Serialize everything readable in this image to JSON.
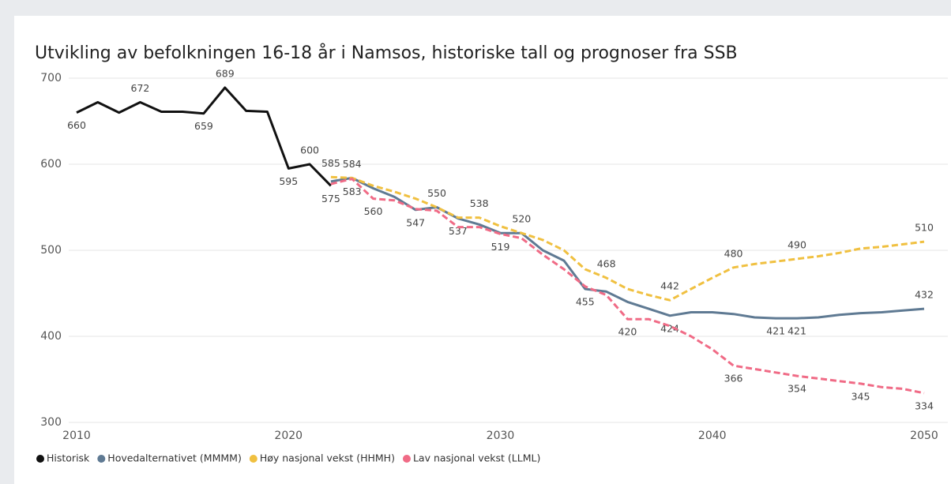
{
  "chart_data": {
    "type": "line",
    "title": "Utvikling av befolkningen 16-18 år i Namsos, historiske tall og prognoser fra SSB",
    "x": [
      2010,
      2011,
      2012,
      2013,
      2014,
      2015,
      2016,
      2017,
      2018,
      2019,
      2020,
      2021,
      2022,
      2023,
      2024,
      2025,
      2026,
      2027,
      2028,
      2029,
      2030,
      2031,
      2032,
      2033,
      2034,
      2035,
      2036,
      2037,
      2038,
      2039,
      2040,
      2041,
      2042,
      2043,
      2044,
      2045,
      2046,
      2047,
      2048,
      2049,
      2050
    ],
    "xlim": [
      2010,
      2050
    ],
    "xticks": [
      2010,
      2020,
      2030,
      2040,
      2050
    ],
    "ylim": [
      300,
      700
    ],
    "yticks": [
      300,
      400,
      500,
      600,
      700
    ],
    "grid": true,
    "legend": "bottom",
    "series": [
      {
        "name": "Historisk",
        "color": "#111111",
        "line_style": "solid",
        "values": [
          660,
          672,
          660,
          672,
          661,
          661,
          659,
          689,
          662,
          661,
          595,
          600,
          575,
          null,
          null,
          null,
          null,
          null,
          null,
          null,
          null,
          null,
          null,
          null,
          null,
          null,
          null,
          null,
          null,
          null,
          null,
          null,
          null,
          null,
          null,
          null,
          null,
          null,
          null,
          null,
          null
        ],
        "value_labels": [
          "660",
          null,
          null,
          "672",
          null,
          null,
          "659",
          "689",
          null,
          null,
          "595",
          "600",
          "575",
          null,
          null,
          null,
          null,
          null,
          null,
          null,
          null,
          null,
          null,
          null,
          null,
          null,
          null,
          null,
          null,
          null,
          null,
          null,
          null,
          null,
          null,
          null,
          null,
          null,
          null,
          null,
          null
        ]
      },
      {
        "name": "Hovedalternativet (MMMM)",
        "color": "#5f7a93",
        "line_style": "solid",
        "values": [
          null,
          null,
          null,
          null,
          null,
          null,
          null,
          null,
          null,
          null,
          null,
          null,
          580,
          584,
          572,
          562,
          547,
          550,
          537,
          530,
          520,
          520,
          500,
          488,
          455,
          452,
          440,
          432,
          424,
          428,
          428,
          426,
          422,
          421,
          421,
          422,
          425,
          427,
          428,
          430,
          432
        ],
        "value_labels": [
          null,
          null,
          null,
          null,
          null,
          null,
          null,
          null,
          null,
          null,
          null,
          null,
          null,
          null,
          null,
          null,
          "547",
          null,
          "537",
          null,
          null,
          null,
          null,
          null,
          "455",
          null,
          null,
          null,
          "424",
          null,
          null,
          null,
          null,
          "421",
          "421",
          null,
          null,
          null,
          null,
          null,
          "432"
        ]
      },
      {
        "name": "Høy nasjonal vekst (HHMH)",
        "color": "#f0c040",
        "line_style": "dashed",
        "values": [
          null,
          null,
          null,
          null,
          null,
          null,
          null,
          null,
          null,
          null,
          null,
          null,
          585,
          584,
          575,
          568,
          560,
          550,
          538,
          538,
          528,
          520,
          512,
          500,
          478,
          468,
          455,
          448,
          442,
          455,
          468,
          480,
          484,
          487,
          490,
          493,
          497,
          502,
          504,
          507,
          510
        ],
        "value_labels": [
          null,
          null,
          null,
          null,
          null,
          null,
          null,
          null,
          null,
          null,
          null,
          null,
          "585",
          "584",
          null,
          null,
          null,
          "550",
          null,
          "538",
          null,
          "520",
          null,
          null,
          null,
          "468",
          null,
          null,
          "442",
          null,
          null,
          "480",
          null,
          null,
          "490",
          null,
          null,
          null,
          null,
          null,
          "510"
        ]
      },
      {
        "name": "Lav nasjonal vekst (LLML)",
        "color": "#f06b86",
        "line_style": "dashed",
        "values": [
          null,
          null,
          null,
          null,
          null,
          null,
          null,
          null,
          null,
          null,
          null,
          null,
          577,
          583,
          560,
          558,
          548,
          546,
          527,
          527,
          519,
          514,
          495,
          478,
          458,
          448,
          420,
          420,
          412,
          400,
          385,
          366,
          362,
          358,
          354,
          351,
          348,
          345,
          341,
          339,
          334
        ],
        "value_labels": [
          null,
          null,
          null,
          null,
          null,
          null,
          null,
          null,
          null,
          null,
          null,
          null,
          null,
          "583",
          "560",
          null,
          null,
          null,
          null,
          null,
          "519",
          null,
          null,
          null,
          null,
          null,
          "420",
          null,
          null,
          null,
          null,
          "366",
          null,
          null,
          "354",
          null,
          null,
          "345",
          null,
          null,
          "334"
        ]
      }
    ]
  }
}
